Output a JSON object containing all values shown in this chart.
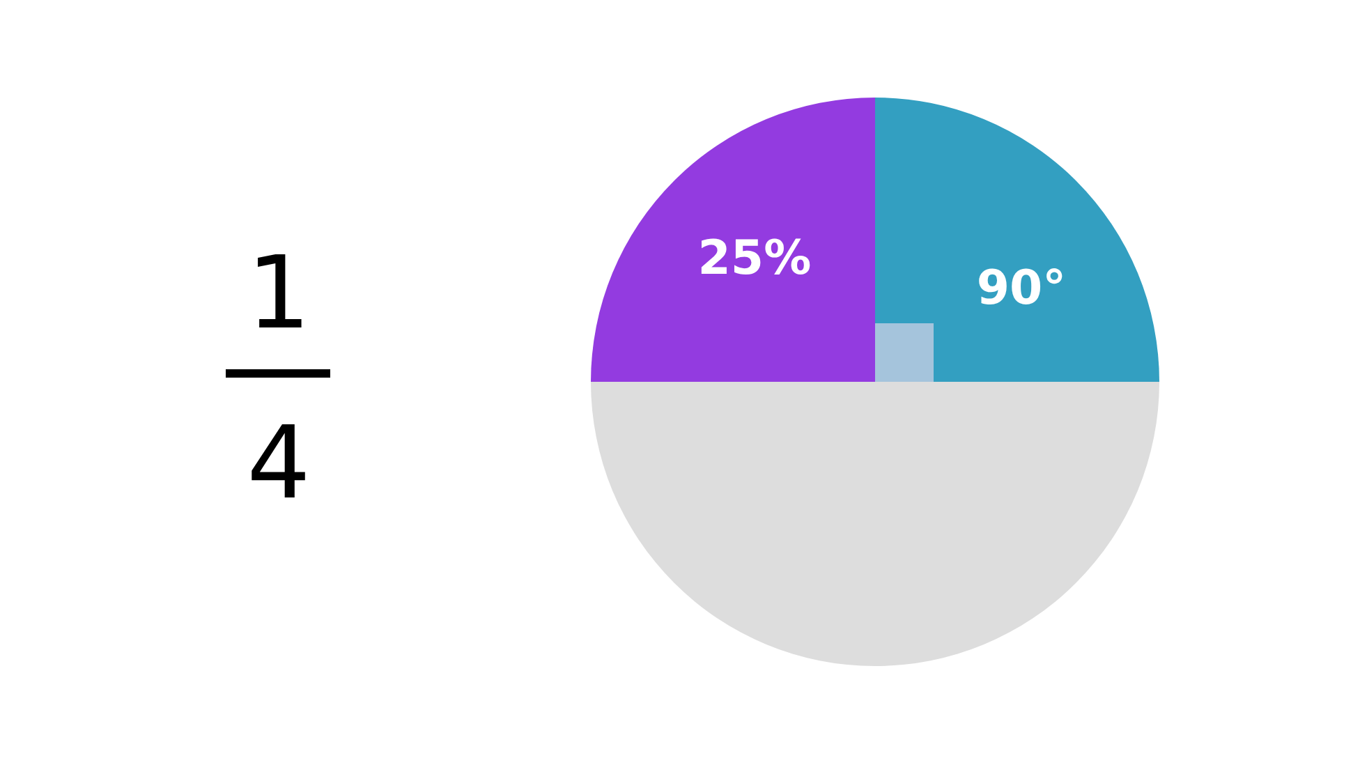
{
  "chart_data": {
    "type": "pie",
    "categories": [
      null,
      null,
      null
    ],
    "values": [
      25,
      50,
      25
    ],
    "colors": [
      "#339fc1",
      "#dddddd",
      "#933be0"
    ],
    "value_labels": [
      null,
      null,
      "25%"
    ],
    "annotations": [
      "1",
      "4",
      "90°"
    ],
    "legend": false
  }
}
